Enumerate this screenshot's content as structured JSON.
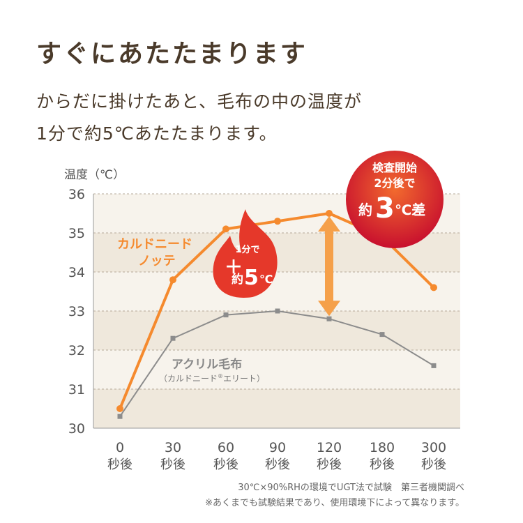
{
  "heading": {
    "title": "すぐにあたたまります",
    "subtitle_line1": "からだに掛けたあと、毛布の中の温度が",
    "subtitle_line2": "1分で約5℃あたたまります。"
  },
  "footnotes": {
    "line1": "30℃×90%RHの環境でUGT法で試験　第三者機関調べ",
    "line2": "※あくまでも試験結果であり、使用環境下によって異なります。"
  },
  "colors": {
    "orange_series": "#f58a2e",
    "gray_series": "#8c8c8c",
    "band": "#efe8dc",
    "badge_red": "#c8102e",
    "arrow": "#f5a04a"
  },
  "chart_data": {
    "type": "line",
    "ylabel": "温度（℃）",
    "ylim": [
      30,
      36
    ],
    "yticks": [
      "30",
      "31",
      "32",
      "33",
      "34",
      "35",
      "36"
    ],
    "categories": [
      {
        "value": "0",
        "unit": "秒後"
      },
      {
        "value": "30",
        "unit": "秒後"
      },
      {
        "value": "60",
        "unit": "秒後"
      },
      {
        "value": "90",
        "unit": "秒後"
      },
      {
        "value": "120",
        "unit": "秒後"
      },
      {
        "value": "180",
        "unit": "秒後"
      },
      {
        "value": "300",
        "unit": "秒後"
      }
    ],
    "grid": true,
    "series": [
      {
        "name_line1": "カルドニード",
        "name_line2": "ノッテ",
        "values": [
          30.5,
          33.8,
          35.1,
          35.3,
          35.5,
          34.9,
          33.6
        ]
      },
      {
        "name_line1": "アクリル毛布",
        "name_line2": "（カルドニード",
        "name_mark": "®",
        "name_line2_end": "エリート）",
        "values": [
          30.3,
          32.3,
          32.9,
          33.0,
          32.8,
          32.4,
          31.6
        ]
      }
    ],
    "annotations": {
      "flame": {
        "line1": "1分で",
        "plus": "＋",
        "yaku": "約",
        "num": "5",
        "unit": "℃"
      },
      "badge": {
        "line1": "検査開始",
        "line2": "2分後で",
        "yaku": "約",
        "num": "3",
        "unit": "℃差"
      }
    }
  }
}
